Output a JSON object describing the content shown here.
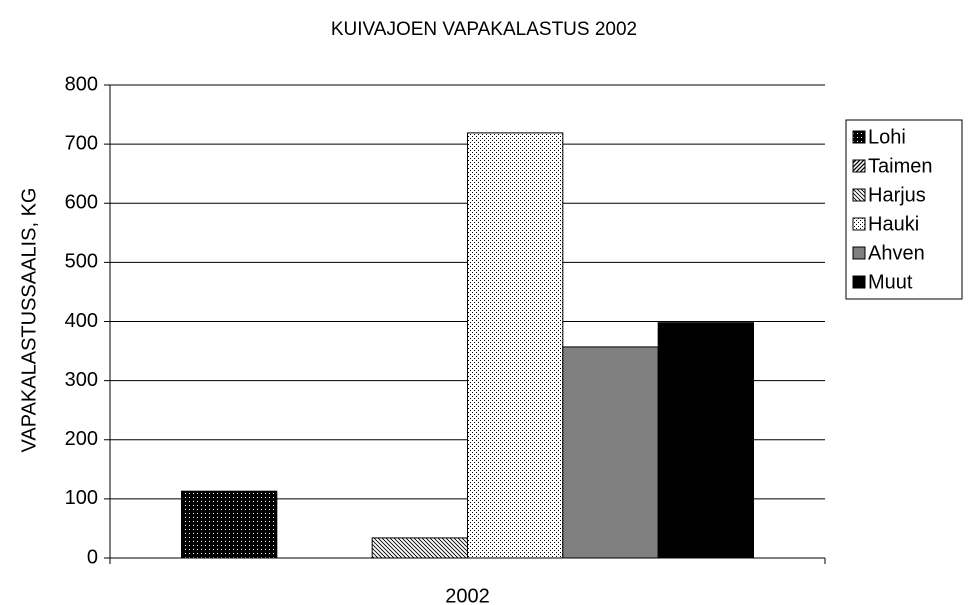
{
  "chart_data": {
    "type": "bar",
    "title": "KUIVAJOEN VAPAKALASTUS 2002",
    "y_label": "VAPAKALASTUSSAALIS, KG",
    "categories": [
      "2002"
    ],
    "series": [
      {
        "name": "Lohi",
        "color": "#000000",
        "pattern": "crosshatch",
        "values": [
          113
        ]
      },
      {
        "name": "Taimen",
        "color": "#000000",
        "pattern": "diagonal",
        "values": [
          0
        ]
      },
      {
        "name": "Harjus",
        "color": "#000000",
        "pattern": "backdiagonal",
        "values": [
          34
        ]
      },
      {
        "name": "Hauki",
        "color": "#000000",
        "pattern": "dots",
        "values": [
          719
        ]
      },
      {
        "name": "Ahven",
        "color": "#808080",
        "pattern": "solid",
        "values": [
          357
        ]
      },
      {
        "name": "Muut",
        "color": "#000000",
        "pattern": "solid",
        "values": [
          398
        ]
      }
    ],
    "ylim": [
      0,
      800
    ],
    "yticks": [
      0,
      100,
      200,
      300,
      400,
      500,
      600,
      700,
      800
    ],
    "grid": true,
    "legend": "right"
  }
}
